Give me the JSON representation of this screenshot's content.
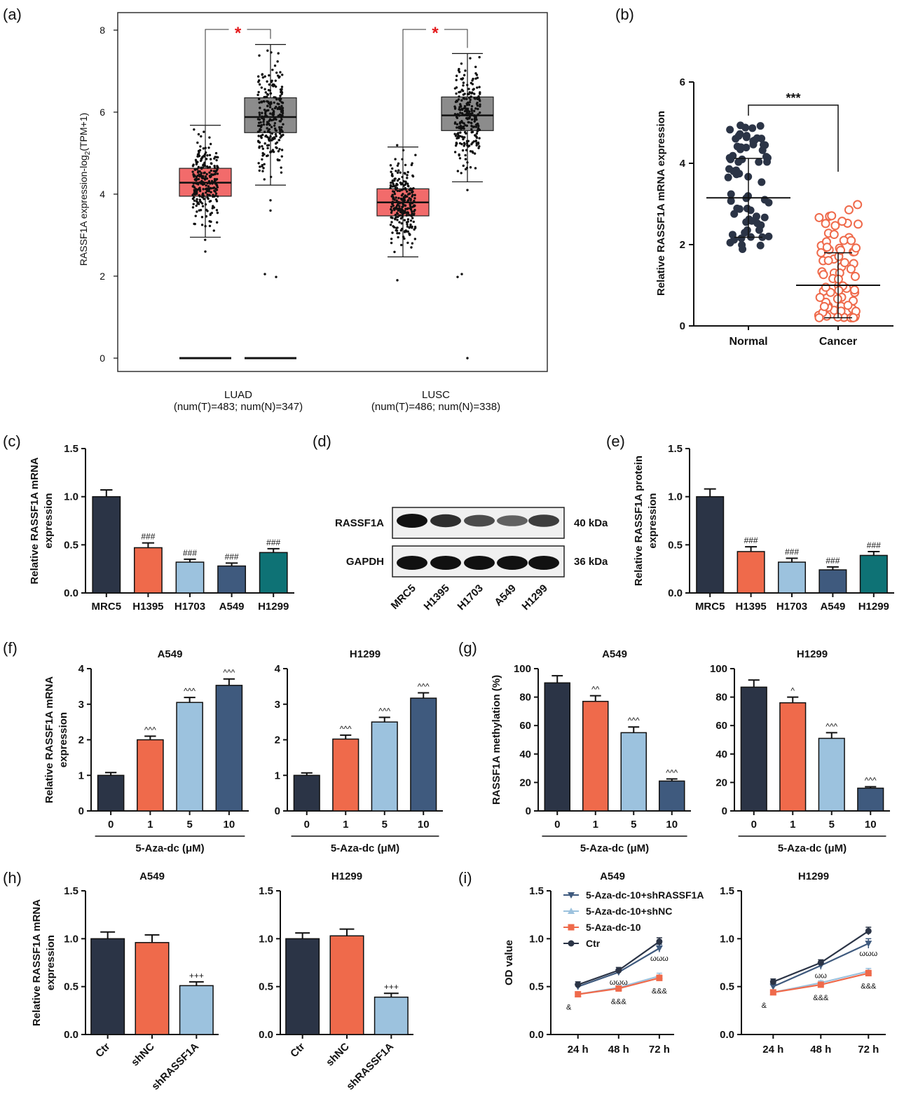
{
  "panel_labels": [
    "(a)",
    "(b)",
    "(c)",
    "(d)",
    "(e)",
    "(f)",
    "(g)",
    "(h)",
    "(i)"
  ],
  "colors": {
    "navy": "#2b3446",
    "orange": "#ef6a4b",
    "lightblue": "#9cc2de",
    "steel": "#3f5a7e",
    "teal": "#0e7275",
    "tumor_box": "#f26b6b",
    "normal_box": "#8c8c8c",
    "sig_red": "#e41a1c"
  },
  "chart_data": [
    {
      "id": "a",
      "type": "box",
      "ylabel_main": "RASSF1A expression-log",
      "ylabel_sub": "2",
      "ylabel_tail": "(TPM+1)",
      "ylim": [
        0,
        8
      ],
      "yticks": [
        "0",
        "2",
        "4",
        "6",
        "8"
      ],
      "groups": [
        {
          "name": "LUAD",
          "note": "(num(T)=483; num(N)=347)",
          "tumor": {
            "q1": 3.95,
            "median": 4.28,
            "q3": 4.63,
            "whisker_low": 2.95,
            "whisker_high": 5.68
          },
          "normal": {
            "q1": 5.5,
            "median": 5.88,
            "q3": 6.35,
            "whisker_low": 4.22,
            "whisker_high": 7.65
          },
          "zero_line": 0
        },
        {
          "name": "LUSC",
          "note": "(num(T)=486; num(N)=338)",
          "tumor": {
            "q1": 3.47,
            "median": 3.8,
            "q3": 4.13,
            "whisker_low": 2.47,
            "whisker_high": 5.15
          },
          "normal": {
            "q1": 5.55,
            "median": 5.92,
            "q3": 6.37,
            "whisker_low": 4.3,
            "whisker_high": 7.43
          }
        }
      ],
      "significance": "*"
    },
    {
      "id": "b",
      "type": "scatter",
      "ylabel": "Relative RASSF1A mRNA expression",
      "ylim": [
        0,
        6
      ],
      "yticks": [
        "0",
        "2",
        "4",
        "6"
      ],
      "categories": [
        "Normal",
        "Cancer"
      ],
      "series": [
        {
          "mean": 3.15,
          "sd_low": 2.18,
          "sd_high": 4.12,
          "range": [
            1.8,
            5.0
          ]
        },
        {
          "mean": 1.0,
          "sd_low": 0.2,
          "sd_high": 1.8,
          "range": [
            0.2,
            3.0
          ]
        }
      ],
      "significance": "***"
    },
    {
      "id": "c",
      "type": "bar",
      "ylabel": [
        "Relative RASSF1A mRNA",
        "expression"
      ],
      "ylim": [
        0,
        1.5
      ],
      "yticks": [
        "0.0",
        "0.5",
        "1.0",
        "1.5"
      ],
      "categories": [
        "MRC5",
        "H1395",
        "H1703",
        "A549",
        "H1299"
      ],
      "values": [
        1.0,
        0.47,
        0.32,
        0.28,
        0.42
      ],
      "errors": [
        0.07,
        0.05,
        0.03,
        0.03,
        0.04
      ],
      "annotations": [
        "",
        "###",
        "###",
        "###",
        "###"
      ]
    },
    {
      "id": "d",
      "type": "blot",
      "rows": [
        {
          "label": "RASSF1A",
          "kda": "40 kDa",
          "intensity": [
            1.0,
            0.8,
            0.6,
            0.45,
            0.7
          ]
        },
        {
          "label": "GAPDH",
          "kda": "36 kDa",
          "intensity": [
            1.0,
            1.0,
            1.0,
            1.0,
            1.0
          ]
        }
      ],
      "lanes": [
        "MRC5",
        "H1395",
        "H1703",
        "A549",
        "H1299"
      ]
    },
    {
      "id": "e",
      "type": "bar",
      "ylabel": [
        "Relative RASSF1A protein",
        "expression"
      ],
      "ylim": [
        0,
        1.5
      ],
      "yticks": [
        "0.0",
        "0.5",
        "1.0",
        "1.5"
      ],
      "categories": [
        "MRC5",
        "H1395",
        "H1703",
        "A549",
        "H1299"
      ],
      "values": [
        1.0,
        0.43,
        0.32,
        0.24,
        0.39
      ],
      "errors": [
        0.08,
        0.05,
        0.04,
        0.03,
        0.04
      ],
      "annotations": [
        "",
        "###",
        "###",
        "###",
        "###"
      ]
    },
    {
      "id": "f1",
      "type": "bar",
      "title": "A549",
      "ylabel": [
        "Relative RASSF1A mRNA",
        "expression"
      ],
      "ylim": [
        0,
        4
      ],
      "yticks": [
        "0",
        "1",
        "2",
        "3",
        "4"
      ],
      "categories": [
        "0",
        "1",
        "5",
        "10"
      ],
      "xlabel": "5-Aza-dc (μM)",
      "values": [
        1.0,
        2.0,
        3.05,
        3.53
      ],
      "errors": [
        0.08,
        0.1,
        0.14,
        0.18
      ],
      "annotations": [
        "",
        "^^^",
        "^^^",
        "^^^"
      ]
    },
    {
      "id": "f2",
      "type": "bar",
      "title": "H1299",
      "ylim": [
        0,
        4
      ],
      "yticks": [
        "0",
        "1",
        "2",
        "3",
        "4"
      ],
      "categories": [
        "0",
        "1",
        "5",
        "10"
      ],
      "xlabel": "5-Aza-dc (μM)",
      "values": [
        1.0,
        2.02,
        2.5,
        3.17
      ],
      "errors": [
        0.07,
        0.11,
        0.13,
        0.15
      ],
      "annotations": [
        "",
        "^^^",
        "^^^",
        "^^^"
      ]
    },
    {
      "id": "g1",
      "type": "bar",
      "title": "A549",
      "ylabel": [
        "RASSF1A methylation (%)"
      ],
      "ylim": [
        0,
        100
      ],
      "yticks": [
        "0",
        "20",
        "40",
        "60",
        "80",
        "100"
      ],
      "categories": [
        "0",
        "1",
        "5",
        "10"
      ],
      "xlabel": "5-Aza-dc (μM)",
      "values": [
        90,
        77,
        55,
        21
      ],
      "errors": [
        5,
        4,
        4,
        1.5
      ],
      "annotations": [
        "",
        "^^",
        "^^^",
        "^^^"
      ]
    },
    {
      "id": "g2",
      "type": "bar",
      "title": "H1299",
      "ylim": [
        0,
        100
      ],
      "yticks": [
        "0",
        "20",
        "40",
        "60",
        "80",
        "100"
      ],
      "categories": [
        "0",
        "1",
        "5",
        "10"
      ],
      "xlabel": "5-Aza-dc (μM)",
      "values": [
        87,
        76,
        51,
        16
      ],
      "errors": [
        5,
        4,
        4,
        1
      ],
      "annotations": [
        "",
        "^",
        "^^^",
        "^^^"
      ]
    },
    {
      "id": "h1",
      "type": "bar",
      "title": "A549",
      "ylabel": [
        "Relative RASSF1A mRNA",
        "expression"
      ],
      "ylim": [
        0,
        1.5
      ],
      "yticks": [
        "0.0",
        "0.5",
        "1.0",
        "1.5"
      ],
      "categories": [
        "Ctr",
        "shNC",
        "shRASSF1A"
      ],
      "values": [
        1.0,
        0.96,
        0.51
      ],
      "errors": [
        0.07,
        0.08,
        0.04
      ],
      "annotations": [
        "",
        "",
        "+++"
      ]
    },
    {
      "id": "h2",
      "type": "bar",
      "title": "H1299",
      "ylim": [
        0,
        1.5
      ],
      "yticks": [
        "0.0",
        "0.5",
        "1.0",
        "1.5"
      ],
      "categories": [
        "Ctr",
        "shNC",
        "shRASSF1A"
      ],
      "values": [
        1.0,
        1.03,
        0.39
      ],
      "errors": [
        0.06,
        0.07,
        0.04
      ],
      "annotations": [
        "",
        "",
        "+++"
      ]
    },
    {
      "id": "i1",
      "type": "line",
      "title": "A549",
      "ylabel": [
        "OD value"
      ],
      "ylim": [
        0,
        1.5
      ],
      "yticks": [
        "0.0",
        "0.5",
        "1.0",
        "1.5"
      ],
      "categories": [
        "24 h",
        "48 h",
        "72 h"
      ],
      "series": [
        {
          "name": "5-Aza-dc-10+shRASSF1A",
          "values": [
            0.5,
            0.65,
            0.9
          ],
          "errors": [
            0.03,
            0.03,
            0.04
          ]
        },
        {
          "name": "5-Aza-dc-10+shNC",
          "values": [
            0.42,
            0.49,
            0.61
          ],
          "errors": [
            0.02,
            0.02,
            0.03
          ]
        },
        {
          "name": "5-Aza-dc-10",
          "values": [
            0.42,
            0.48,
            0.59
          ],
          "errors": [
            0.02,
            0.02,
            0.03
          ]
        },
        {
          "name": "Ctr",
          "values": [
            0.52,
            0.67,
            0.97
          ],
          "errors": [
            0.03,
            0.03,
            0.04
          ]
        }
      ],
      "annotations": {
        "omega": [
          "",
          "ωωω",
          "ωωω"
        ],
        "amp": [
          "&",
          "&&&",
          "&&&"
        ]
      }
    },
    {
      "id": "i2",
      "type": "line",
      "title": "H1299",
      "ylim": [
        0,
        1.5
      ],
      "yticks": [
        "0.0",
        "0.5",
        "1.0",
        "1.5"
      ],
      "categories": [
        "24 h",
        "48 h",
        "72 h"
      ],
      "series": [
        {
          "name": "5-Aza-dc-10+shRASSF1A",
          "values": [
            0.5,
            0.72,
            0.95
          ],
          "errors": [
            0.03,
            0.04,
            0.05
          ]
        },
        {
          "name": "5-Aza-dc-10+shNC",
          "values": [
            0.44,
            0.54,
            0.66
          ],
          "errors": [
            0.02,
            0.02,
            0.03
          ]
        },
        {
          "name": "5-Aza-dc-10",
          "values": [
            0.44,
            0.52,
            0.64
          ],
          "errors": [
            0.02,
            0.02,
            0.03
          ]
        },
        {
          "name": "Ctr",
          "values": [
            0.55,
            0.75,
            1.08
          ],
          "errors": [
            0.03,
            0.03,
            0.04
          ]
        }
      ],
      "annotations": {
        "omega": [
          "",
          "ωω",
          "ωωω"
        ],
        "amp": [
          "&",
          "&&&",
          "&&&"
        ]
      }
    }
  ]
}
